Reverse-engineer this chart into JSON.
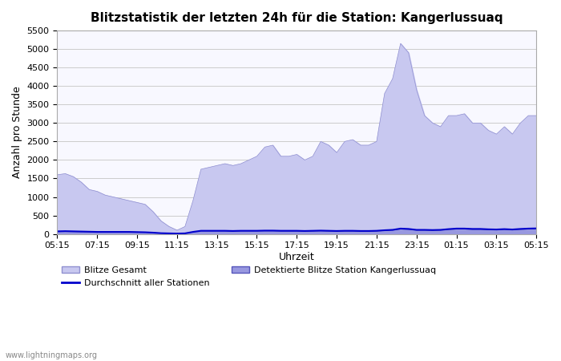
{
  "title": "Blitzstatistik der letzten 24h für die Station: Kangerlussuaq",
  "xlabel": "Uhrzeit",
  "ylabel": "Anzahl pro Stunde",
  "xlabels": [
    "05:15",
    "07:15",
    "09:15",
    "11:15",
    "13:15",
    "15:15",
    "17:15",
    "19:15",
    "21:15",
    "23:15",
    "01:15",
    "03:15",
    "05:15"
  ],
  "ylim": [
    0,
    5500
  ],
  "yticks": [
    0,
    500,
    1000,
    1500,
    2000,
    2500,
    3000,
    3500,
    4000,
    4500,
    5000,
    5500
  ],
  "color_gesamt_fill": "#c8c8f0",
  "color_gesamt_edge": "#9090d0",
  "color_station_fill": "#9898e0",
  "color_station_edge": "#5555bb",
  "color_avg_line": "#0000cc",
  "bg_color": "#ffffff",
  "plot_bg_color": "#f8f8ff",
  "grid_color": "#cccccc",
  "watermark": "www.lightningmaps.org",
  "legend_items": [
    "Blitze Gesamt",
    "Durchschnitt aller Stationen",
    "Detektierte Blitze Station Kangerlussuaq"
  ],
  "gesamt_values": [
    1600,
    1630,
    1550,
    1400,
    1200,
    1150,
    1050,
    1000,
    950,
    900,
    850,
    800,
    600,
    350,
    200,
    100,
    200,
    900,
    1750,
    1800,
    1850,
    1900,
    1850,
    1900,
    2000,
    2100,
    2350,
    2400,
    2100,
    2100,
    2150,
    2000,
    2100,
    2500,
    2400,
    2200,
    2500,
    2550,
    2400,
    2400,
    2500,
    3800,
    4200,
    5150,
    4900,
    3900,
    3200,
    3000,
    2900,
    3200,
    3200,
    3250,
    3000,
    3000,
    2800,
    2700,
    2900,
    2700,
    3000,
    3200,
    3200
  ],
  "station_values": [
    60,
    65,
    60,
    55,
    55,
    50,
    50,
    50,
    50,
    50,
    50,
    45,
    35,
    20,
    10,
    5,
    10,
    50,
    80,
    80,
    80,
    80,
    75,
    80,
    80,
    80,
    80,
    80,
    75,
    75,
    75,
    70,
    75,
    80,
    75,
    70,
    75,
    75,
    70,
    70,
    75,
    90,
    100,
    130,
    120,
    100,
    100,
    95,
    100,
    120,
    130,
    130,
    120,
    120,
    115,
    110,
    120,
    110,
    120,
    130,
    135
  ],
  "avg_values": [
    70,
    75,
    70,
    65,
    60,
    55,
    55,
    55,
    55,
    55,
    50,
    45,
    35,
    20,
    15,
    10,
    15,
    55,
    85,
    85,
    85,
    85,
    80,
    85,
    85,
    85,
    90,
    90,
    85,
    85,
    85,
    80,
    85,
    90,
    85,
    80,
    85,
    85,
    80,
    80,
    85,
    100,
    110,
    145,
    135,
    110,
    110,
    105,
    110,
    130,
    145,
    145,
    135,
    135,
    125,
    120,
    130,
    120,
    135,
    145,
    150
  ]
}
